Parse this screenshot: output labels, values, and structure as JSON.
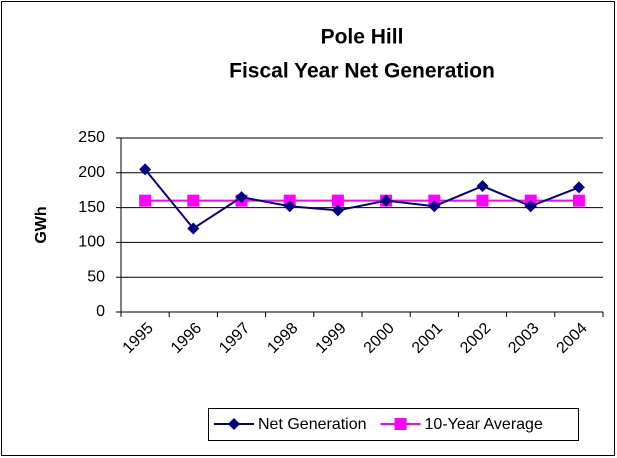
{
  "chart_data": {
    "type": "line",
    "title": "Pole Hill",
    "subtitle": "Fiscal Year Net Generation",
    "y_label": "GWh",
    "categories": [
      "1995",
      "1996",
      "1997",
      "1998",
      "1999",
      "2000",
      "2001",
      "2002",
      "2003",
      "2004"
    ],
    "series": [
      {
        "name": "Net Generation",
        "color": "#000080",
        "marker": "diamond",
        "values": [
          205,
          120,
          165,
          152,
          146,
          160,
          152,
          181,
          152,
          179
        ]
      },
      {
        "name": "10-Year Average",
        "color": "#ff00ff",
        "marker": "square",
        "values": [
          160,
          160,
          160,
          160,
          160,
          160,
          160,
          160,
          160,
          160
        ]
      }
    ],
    "ylim": [
      0,
      250
    ],
    "yticks": [
      0,
      50,
      100,
      150,
      200,
      250
    ],
    "grid": true,
    "legend": "bottom"
  }
}
